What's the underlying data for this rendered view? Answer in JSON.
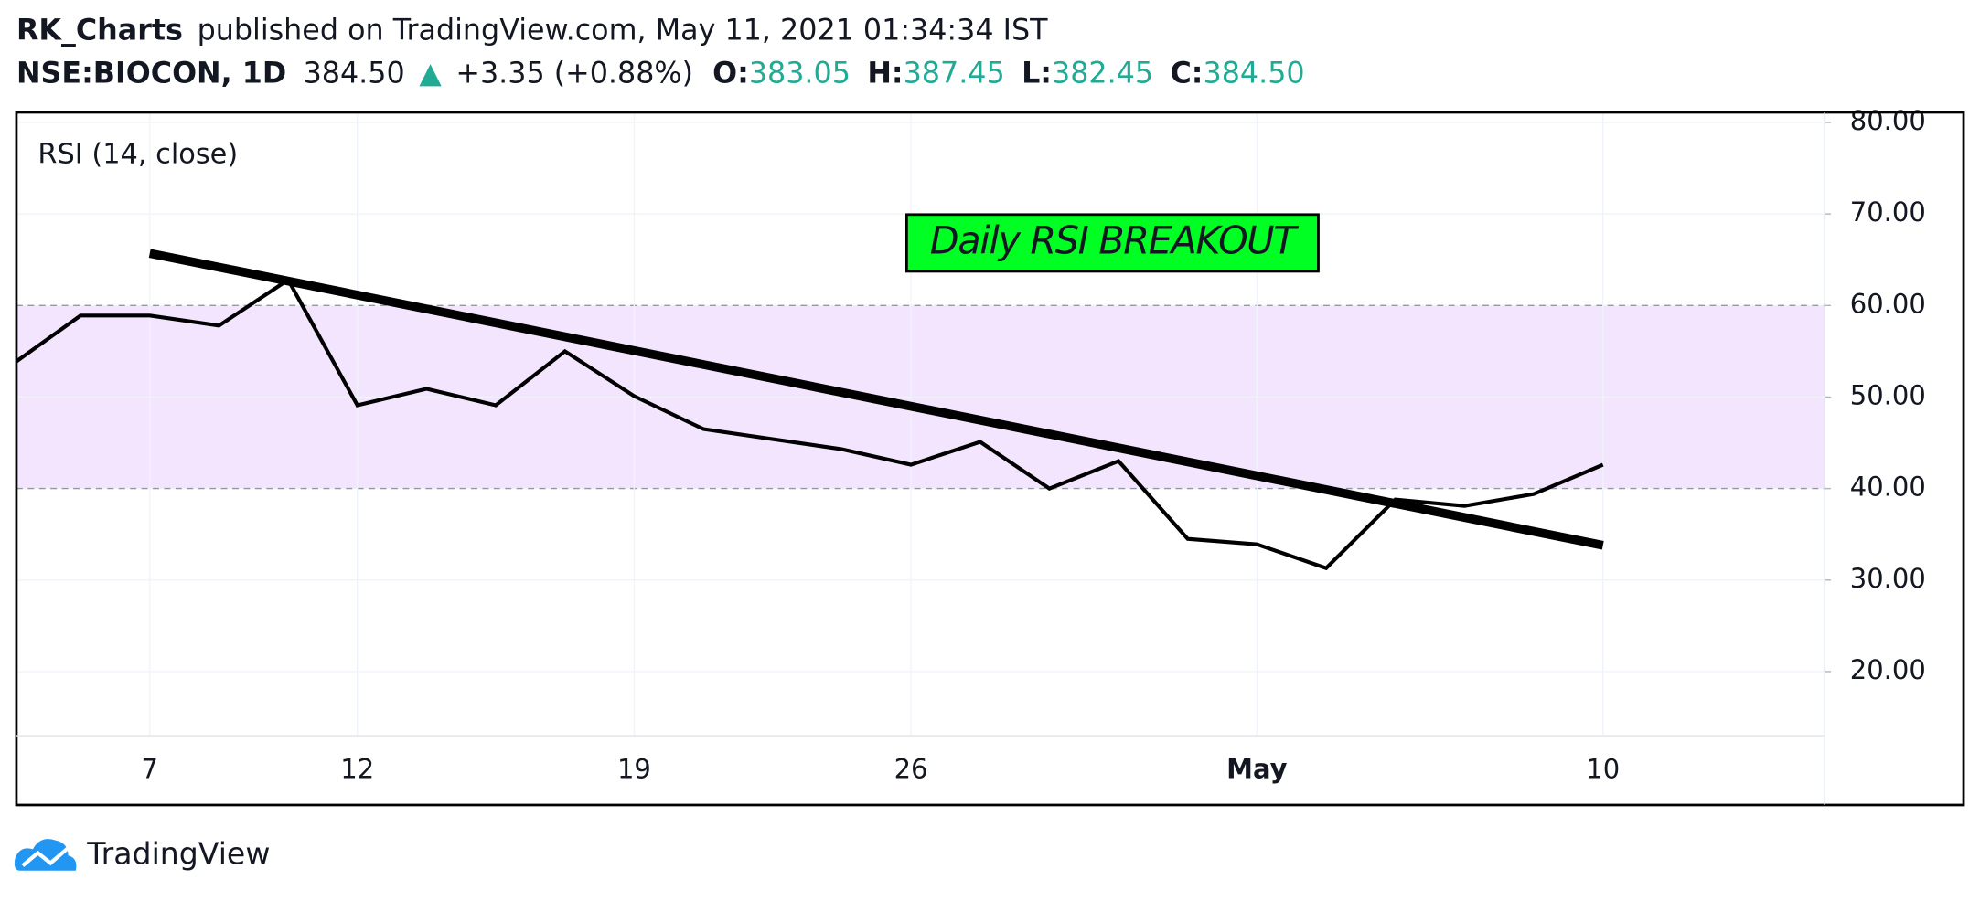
{
  "header": {
    "author": "RK_Charts",
    "published": "published on TradingView.com, May 11, 2021 01:34:34 IST",
    "symbol": "NSE:BIOCON, 1D",
    "price": "384.50",
    "arrow": "▲",
    "change": "+3.35 (+0.88%)",
    "ohlc": [
      {
        "label": "O:",
        "value": "383.05"
      },
      {
        "label": "H:",
        "value": "387.45"
      },
      {
        "label": "L:",
        "value": "382.45"
      },
      {
        "label": "C:",
        "value": "384.50"
      }
    ]
  },
  "footer": {
    "brand": "TradingView"
  },
  "chart_data": {
    "type": "line",
    "categories": [
      null,
      null,
      "7",
      null,
      null,
      "12",
      null,
      null,
      null,
      "19",
      null,
      null,
      null,
      "26",
      null,
      null,
      null,
      null,
      "May",
      null,
      null,
      null,
      null,
      "10",
      null,
      null,
      null
    ],
    "series": [
      {
        "name": "RSI (14, close)",
        "color": "#000000",
        "values": [
          53.5,
          58.9,
          58.9,
          57.8,
          62.8,
          49.1,
          50.9,
          49.1,
          55.0,
          50.1,
          46.5,
          45.4,
          44.3,
          42.6,
          45.1,
          40.0,
          43.0,
          34.5,
          33.9,
          31.3,
          38.8,
          38.1,
          39.4,
          42.6,
          null,
          null,
          null
        ]
      }
    ],
    "trendline": {
      "values": [
        65.7,
        33.8
      ],
      "color": "#000000"
    },
    "band": {
      "lower": 40,
      "upper": 60,
      "color": "#f3e5fe"
    },
    "annotations": [
      {
        "text": "Daily RSI BREAKOUT",
        "color": "#00ff22"
      }
    ],
    "ylim": [
      13,
      81.1
    ],
    "yticks": [
      {
        "value": 20,
        "label": "20.00"
      },
      {
        "value": 30,
        "label": "30.00"
      },
      {
        "value": 40,
        "label": "40.00"
      },
      {
        "value": 50,
        "label": "50.00"
      },
      {
        "value": 60,
        "label": "60.00"
      },
      {
        "value": 70,
        "label": "70.00"
      },
      {
        "value": 80,
        "label": "80.00"
      }
    ],
    "grid": true
  }
}
